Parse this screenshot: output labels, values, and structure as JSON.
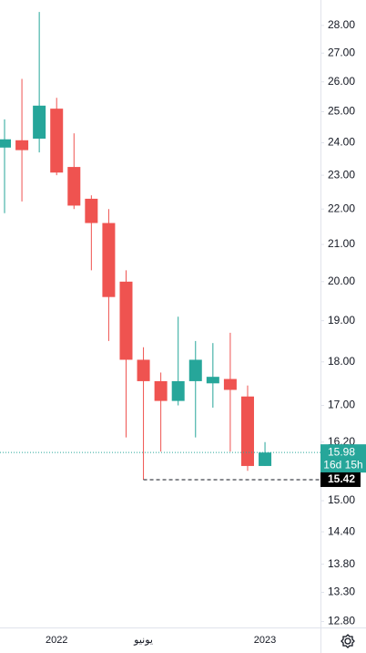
{
  "chart_data": {
    "type": "candlestick",
    "categories": [
      null,
      null,
      null,
      "2022",
      null,
      null,
      null,
      null,
      "يونيو",
      null,
      null,
      null,
      null,
      null,
      null,
      "2023"
    ],
    "series": [
      {
        "open": [
          23.85,
          24.08,
          24.13,
          25.1,
          23.25,
          22.3,
          21.6,
          20.0,
          18.05,
          17.55,
          17.1,
          17.55,
          17.5,
          17.6,
          17.2,
          15.7
        ],
        "high": [
          24.75,
          26.1,
          28.5,
          25.46,
          24.3,
          22.4,
          22.0,
          20.3,
          18.35,
          17.75,
          19.1,
          18.5,
          18.45,
          18.7,
          17.45,
          16.2
        ],
        "low": [
          21.88,
          22.22,
          23.7,
          23.0,
          22.0,
          20.3,
          18.5,
          16.3,
          15.42,
          16.0,
          17.0,
          16.3,
          16.95,
          16.0,
          15.6,
          15.7
        ],
        "close": [
          24.11,
          23.77,
          25.2,
          23.08,
          22.1,
          21.6,
          19.6,
          18.05,
          17.55,
          17.1,
          17.55,
          18.05,
          17.65,
          17.35,
          15.7,
          15.98
        ]
      }
    ],
    "up_color": "#26a69a",
    "down_color": "#ef5350",
    "log_scale": true,
    "ylim": [
      12.7,
      28.95
    ],
    "yticks": [
      {
        "value": 28,
        "label": "28.00"
      },
      {
        "value": 27,
        "label": "27.00"
      },
      {
        "value": 26,
        "label": "26.00"
      },
      {
        "value": 25,
        "label": "25.00"
      },
      {
        "value": 24,
        "label": "24.00"
      },
      {
        "value": 23,
        "label": "23.00"
      },
      {
        "value": 22,
        "label": "22.00"
      },
      {
        "value": 21,
        "label": "21.00"
      },
      {
        "value": 20,
        "label": "20.00"
      },
      {
        "value": 19,
        "label": "19.00"
      },
      {
        "value": 18,
        "label": "18.00"
      },
      {
        "value": 17,
        "label": "17.00"
      },
      {
        "value": 16.2,
        "label": "16.20"
      },
      {
        "value": 15,
        "label": "15.00"
      },
      {
        "value": 14.4,
        "label": "14.40"
      },
      {
        "value": 13.8,
        "label": "13.80"
      },
      {
        "value": 13.3,
        "label": "13.30"
      },
      {
        "value": 12.8,
        "label": "12.80"
      }
    ],
    "last_price": {
      "value": 15.98,
      "countdown": "16d 15h"
    },
    "low_marker": {
      "value": 15.42
    }
  }
}
